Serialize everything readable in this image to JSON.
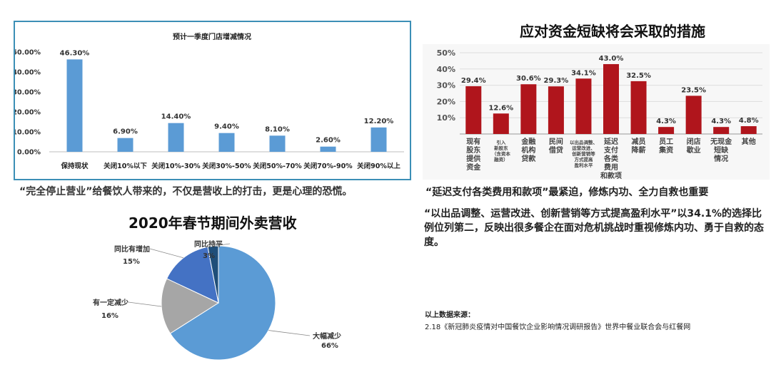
{
  "colors": {
    "bar_blue": "#5b9bd5",
    "bar_red": "#b0151c",
    "frame_blue": "#3c8fb6",
    "pie_large": "#5b9bd5",
    "pie_gray": "#a6a6a6",
    "pie_blue": "#4472c4",
    "pie_dark": "#1f4e79"
  },
  "chart_data": [
    {
      "type": "bar",
      "title": "预计一季度门店增减情况",
      "categories": [
        "保持现状",
        "关闭10%以下",
        "关闭10%-30%",
        "关闭30%-50%",
        "关闭50%-70%",
        "关闭70%-90%",
        "关闭90%以上"
      ],
      "values": [
        46.3,
        6.9,
        14.4,
        9.4,
        8.1,
        2.6,
        12.2
      ],
      "value_labels": [
        "46.30%",
        "6.90%",
        "14.40%",
        "9.40%",
        "8.10%",
        "2.60%",
        "12.20%"
      ],
      "y_ticks": [
        "0.00%",
        "10.00%",
        "20.00%",
        "30.00%",
        "40.00%",
        "50.00%"
      ],
      "ylim": [
        0,
        50
      ],
      "grid": false
    },
    {
      "type": "bar",
      "title": "应对资金短缺将会采取的措施",
      "categories": [
        "现有股东提供资金",
        "引入新股东（含资本融资）",
        "金融机构贷款",
        "民间借贷",
        "以出品调整、运营改进、创新营销等方式提高盈利水平",
        "延迟支付各类费用和款项",
        "减员降薪",
        "员工集资",
        "闭店歇业",
        "无现金短缺情况",
        "其他"
      ],
      "values": [
        29.4,
        12.6,
        30.6,
        29.3,
        34.1,
        43.0,
        32.5,
        4.3,
        23.5,
        4.3,
        4.8
      ],
      "value_labels": [
        "29.4%",
        "12.6%",
        "30.6%",
        "29.3%",
        "34.1%",
        "43.0%",
        "32.5%",
        "4.3%",
        "23.5%",
        "4.3%",
        "4.8%"
      ],
      "y_ticks": [
        "10%",
        "20%",
        "30%",
        "40%",
        "50%"
      ],
      "ylim": [
        0,
        50
      ],
      "grid": true
    },
    {
      "type": "pie",
      "title": "2020年春节期间外卖营收",
      "categories": [
        "大幅减少",
        "有一定减少",
        "同比有增加",
        "同比持平"
      ],
      "values": [
        66,
        16,
        15,
        3
      ],
      "value_labels": [
        "66%",
        "16%",
        "15%",
        "3%"
      ]
    }
  ],
  "chart1_xlabels": [
    "保持现状",
    "关闭10%以下",
    "关闭10%-30%",
    "关闭30%-50%",
    "关闭50%-70%",
    "关闭70%-90%",
    "关闭90%以上"
  ],
  "chart2_xlabels": [
    [
      "现有",
      "股东",
      "提供",
      "资金"
    ],
    [
      "引入",
      "新股东",
      "（含资本",
      "融资）"
    ],
    [
      "金融",
      "机构",
      "贷款"
    ],
    [
      "民间",
      "借贷"
    ],
    [
      "以出品调整、",
      "运营改进、",
      "创新营销等",
      "方式提高",
      "盈利水平"
    ],
    [
      "延迟",
      "支付",
      "各类",
      "费用",
      "和款项"
    ],
    [
      "减员",
      "降薪"
    ],
    [
      "员工",
      "集资"
    ],
    [
      "闭店",
      "歇业"
    ],
    [
      "无现金",
      "短缺",
      "情况"
    ],
    [
      "其他"
    ]
  ],
  "text": {
    "caption_left": "“完全停止营业”给餐饮人带来的，不仅是营收上的打击，更是心理的恐慌。",
    "right_subtitle": "“延迟支付各类费用和款项”最紧迫，修炼内功、全力自救也重要",
    "right_paragraph": "“以出品调整、运营改进、创新营销等方式提高盈利水平”以34.1%的选择比例位列第二，反映出很多餐企在面对危机挑战时重视修炼内功、勇于自救的态度。",
    "source_label": "以上数据来源：",
    "source_text": "2.18《新冠肺炎疫情对中国餐饮企业影响情况调研报告》世界中餐业联合会与红餐网"
  }
}
